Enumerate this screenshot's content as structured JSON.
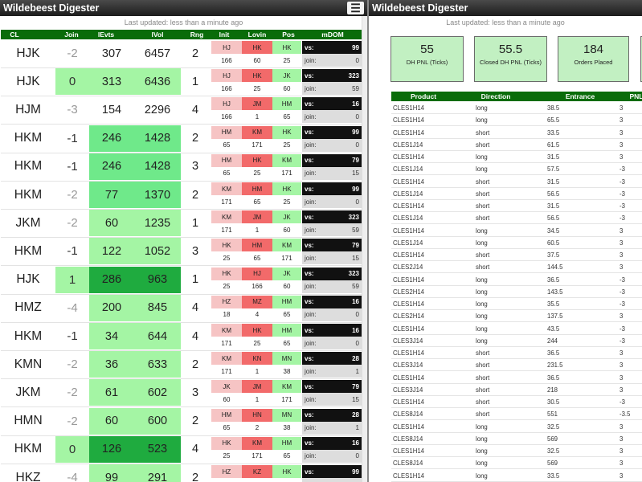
{
  "left": {
    "title": "Wildebeest Digester",
    "updated": "Last updated: less than a minute ago",
    "columns": [
      "CL",
      "Join",
      "lEvts",
      "lVol",
      "Rng",
      "Init",
      "Lovin",
      "Pos",
      "mDOM"
    ],
    "vs_label": "vs:",
    "join_label": "join:",
    "rows": [
      {
        "cl": "HJK",
        "join": "-2",
        "evts": "307",
        "vol": "6457",
        "rng": "2",
        "i1": "HJ",
        "i2": "HK",
        "i3": "HK",
        "n1": "166",
        "n2": "60",
        "n3": "25",
        "vs": "99",
        "jv": "0",
        "jc": "n",
        "ec": "w",
        "vc": "w"
      },
      {
        "cl": "HJK",
        "join": "0",
        "evts": "313",
        "vol": "6436",
        "rng": "1",
        "i1": "HJ",
        "i2": "HK",
        "i3": "JK",
        "n1": "166",
        "n2": "25",
        "n3": "60",
        "vs": "323",
        "jv": "59",
        "jc": "p",
        "ec": "p",
        "vc": "p"
      },
      {
        "cl": "HJM",
        "join": "-3",
        "evts": "154",
        "vol": "2296",
        "rng": "4",
        "i1": "HJ",
        "i2": "JM",
        "i3": "HM",
        "n1": "166",
        "n2": "1",
        "n3": "65",
        "vs": "16",
        "jv": "0",
        "jc": "n",
        "ec": "w",
        "vc": "w"
      },
      {
        "cl": "HKM",
        "join": "-1",
        "evts": "246",
        "vol": "1428",
        "rng": "2",
        "i1": "HM",
        "i2": "KM",
        "i3": "HK",
        "n1": "65",
        "n2": "171",
        "n3": "25",
        "vs": "99",
        "jv": "0",
        "jc": "n",
        "ec": "m",
        "vc": "m"
      },
      {
        "cl": "HKM",
        "join": "-1",
        "evts": "246",
        "vol": "1428",
        "rng": "3",
        "i1": "HM",
        "i2": "HK",
        "i3": "KM",
        "n1": "65",
        "n2": "25",
        "n3": "171",
        "vs": "79",
        "jv": "15",
        "jc": "n",
        "ec": "m",
        "vc": "m"
      },
      {
        "cl": "HKM",
        "join": "-2",
        "evts": "77",
        "vol": "1370",
        "rng": "2",
        "i1": "KM",
        "i2": "HM",
        "i3": "HK",
        "n1": "171",
        "n2": "65",
        "n3": "25",
        "vs": "99",
        "jv": "0",
        "jc": "n",
        "ec": "m",
        "vc": "m"
      },
      {
        "cl": "JKM",
        "join": "-2",
        "evts": "60",
        "vol": "1235",
        "rng": "1",
        "i1": "KM",
        "i2": "JM",
        "i3": "JK",
        "n1": "171",
        "n2": "1",
        "n3": "60",
        "vs": "323",
        "jv": "59",
        "jc": "n",
        "ec": "p",
        "vc": "p"
      },
      {
        "cl": "HKM",
        "join": "-1",
        "evts": "122",
        "vol": "1052",
        "rng": "3",
        "i1": "HK",
        "i2": "HM",
        "i3": "KM",
        "n1": "25",
        "n2": "65",
        "n3": "171",
        "vs": "79",
        "jv": "15",
        "jc": "n",
        "ec": "p",
        "vc": "p"
      },
      {
        "cl": "HJK",
        "join": "1",
        "evts": "286",
        "vol": "963",
        "rng": "1",
        "i1": "HK",
        "i2": "HJ",
        "i3": "JK",
        "n1": "25",
        "n2": "166",
        "n3": "60",
        "vs": "323",
        "jv": "59",
        "jc": "p",
        "ec": "d",
        "vc": "d"
      },
      {
        "cl": "HMZ",
        "join": "-4",
        "evts": "200",
        "vol": "845",
        "rng": "4",
        "i1": "HZ",
        "i2": "MZ",
        "i3": "HM",
        "n1": "18",
        "n2": "4",
        "n3": "65",
        "vs": "16",
        "jv": "0",
        "jc": "n",
        "ec": "p",
        "vc": "p"
      },
      {
        "cl": "HKM",
        "join": "-1",
        "evts": "34",
        "vol": "644",
        "rng": "4",
        "i1": "KM",
        "i2": "HK",
        "i3": "HM",
        "n1": "171",
        "n2": "25",
        "n3": "65",
        "vs": "16",
        "jv": "0",
        "jc": "n",
        "ec": "p",
        "vc": "p"
      },
      {
        "cl": "KMN",
        "join": "-2",
        "evts": "36",
        "vol": "633",
        "rng": "2",
        "i1": "KM",
        "i2": "KN",
        "i3": "MN",
        "n1": "171",
        "n2": "1",
        "n3": "38",
        "vs": "28",
        "jv": "1",
        "jc": "n",
        "ec": "p",
        "vc": "p"
      },
      {
        "cl": "JKM",
        "join": "-2",
        "evts": "61",
        "vol": "602",
        "rng": "3",
        "i1": "JK",
        "i2": "JM",
        "i3": "KM",
        "n1": "60",
        "n2": "1",
        "n3": "171",
        "vs": "79",
        "jv": "15",
        "jc": "n",
        "ec": "p",
        "vc": "p"
      },
      {
        "cl": "HMN",
        "join": "-2",
        "evts": "60",
        "vol": "600",
        "rng": "2",
        "i1": "HM",
        "i2": "HN",
        "i3": "MN",
        "n1": "65",
        "n2": "2",
        "n3": "38",
        "vs": "28",
        "jv": "1",
        "jc": "n",
        "ec": "p",
        "vc": "p"
      },
      {
        "cl": "HKM",
        "join": "0",
        "evts": "126",
        "vol": "523",
        "rng": "4",
        "i1": "HK",
        "i2": "KM",
        "i3": "HM",
        "n1": "25",
        "n2": "171",
        "n3": "65",
        "vs": "16",
        "jv": "0",
        "jc": "p",
        "ec": "d",
        "vc": "d"
      },
      {
        "cl": "HKZ",
        "join": "-4",
        "evts": "99",
        "vol": "291",
        "rng": "2",
        "i1": "HZ",
        "i2": "KZ",
        "i3": "HK",
        "n1": "",
        "n2": "",
        "n3": "",
        "vs": "99",
        "jv": "",
        "jc": "n",
        "ec": "p",
        "vc": "p"
      }
    ]
  },
  "right": {
    "title": "Wildebeest Digester",
    "updated": "Last updated: less than a minute ago",
    "cards": [
      {
        "num": "55",
        "label": "DH PNL (Ticks)"
      },
      {
        "num": "55.5",
        "label": "Closed DH PNL (Ticks)"
      },
      {
        "num": "184",
        "label": "Orders Placed"
      }
    ],
    "columns": [
      "Product",
      "Direction",
      "Entrance",
      "PNL"
    ],
    "rows": [
      [
        "CLES1H14",
        "long",
        "38.5",
        "3"
      ],
      [
        "CLES1H14",
        "long",
        "65.5",
        "3"
      ],
      [
        "CLES1H14",
        "short",
        "33.5",
        "3"
      ],
      [
        "CLES1J14",
        "short",
        "61.5",
        "3"
      ],
      [
        "CLES1H14",
        "long",
        "31.5",
        "3"
      ],
      [
        "CLES1J14",
        "long",
        "57.5",
        "-3"
      ],
      [
        "CLES1H14",
        "short",
        "31.5",
        "-3"
      ],
      [
        "CLES1J14",
        "short",
        "56.5",
        "-3"
      ],
      [
        "CLES1H14",
        "short",
        "31.5",
        "-3"
      ],
      [
        "CLES1J14",
        "short",
        "56.5",
        "-3"
      ],
      [
        "CLES1H14",
        "long",
        "34.5",
        "3"
      ],
      [
        "CLES1J14",
        "long",
        "60.5",
        "3"
      ],
      [
        "CLES1H14",
        "short",
        "37.5",
        "3"
      ],
      [
        "CLES2J14",
        "short",
        "144.5",
        "3"
      ],
      [
        "CLES1H14",
        "long",
        "36.5",
        "-3"
      ],
      [
        "CLES2H14",
        "long",
        "143.5",
        "-3"
      ],
      [
        "CLES1H14",
        "long",
        "35.5",
        "-3"
      ],
      [
        "CLES2H14",
        "long",
        "137.5",
        "3"
      ],
      [
        "CLES1H14",
        "long",
        "43.5",
        "-3"
      ],
      [
        "CLES3J14",
        "long",
        "244",
        "-3"
      ],
      [
        "CLES1H14",
        "short",
        "36.5",
        "3"
      ],
      [
        "CLES3J14",
        "short",
        "231.5",
        "3"
      ],
      [
        "CLES1H14",
        "short",
        "36.5",
        "3"
      ],
      [
        "CLES3J14",
        "short",
        "218",
        "3"
      ],
      [
        "CLES1H14",
        "short",
        "30.5",
        "-3"
      ],
      [
        "CLES8J14",
        "short",
        "551",
        "-3.5"
      ],
      [
        "CLES1H14",
        "long",
        "32.5",
        "3"
      ],
      [
        "CLES8J14",
        "long",
        "569",
        "3"
      ],
      [
        "CLES1H14",
        "long",
        "32.5",
        "3"
      ],
      [
        "CLES8J14",
        "long",
        "569",
        "3"
      ],
      [
        "CLES1H14",
        "long",
        "33.5",
        "3"
      ]
    ]
  },
  "colors": {
    "header_green": "#0a6c0a",
    "light_green": "#a4f5a4",
    "mid_green": "#6fe98a",
    "dark_green": "#1fab3f",
    "red_cell": "#f26a6a",
    "pink_cell": "#f6c4c4"
  }
}
